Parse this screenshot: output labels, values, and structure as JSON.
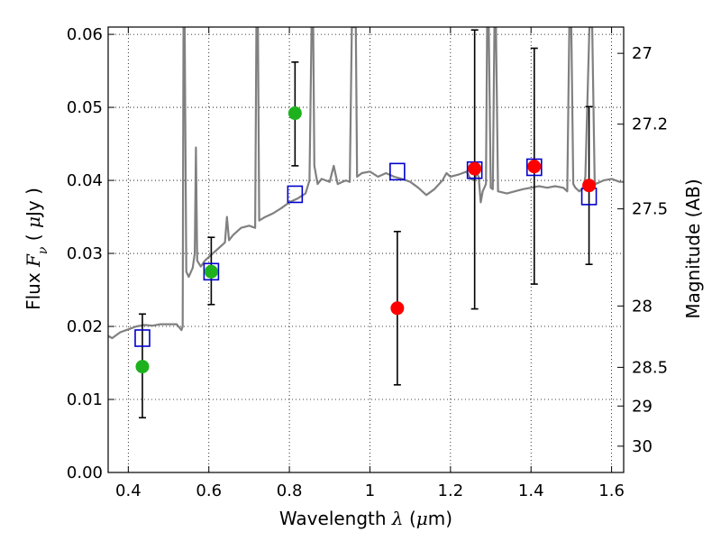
{
  "chart_data": {
    "type": "scatter",
    "xlabel": "Wavelength  λ (μm)",
    "ylabel": "Flux  F_ν  ( μJy )",
    "y2label": "Magnitude (AB)",
    "xlim": [
      0.35,
      1.63
    ],
    "ylim": [
      0.0,
      0.061
    ],
    "grid": true,
    "x_ticks": [
      0.4,
      0.6,
      0.8,
      1.0,
      1.2,
      1.4,
      1.6
    ],
    "x_tick_labels": [
      "0.4",
      "0.6",
      "0.8",
      "1",
      "1.2",
      "1.4",
      "1.6"
    ],
    "y_ticks": [
      0.0,
      0.01,
      0.02,
      0.03,
      0.04,
      0.05,
      0.06
    ],
    "y_tick_labels": [
      "0.00",
      "0.01",
      "0.02",
      "0.03",
      "0.04",
      "0.05",
      "0.06"
    ],
    "y2_ticks": [
      {
        "label": "27",
        "flux": 0.0574
      },
      {
        "label": "27.2",
        "flux": 0.0477
      },
      {
        "label": "27.5",
        "flux": 0.0361
      },
      {
        "label": "28",
        "flux": 0.0228
      },
      {
        "label": "28.5",
        "flux": 0.0144
      },
      {
        "label": "29",
        "flux": 0.0091
      },
      {
        "label": "30",
        "flux": 0.0036
      }
    ],
    "colors": {
      "model": "#808080",
      "green": "#1db21d",
      "red": "#ff0000",
      "blue": "#0000cc",
      "errorbar": "#000000",
      "grid": "#000000"
    },
    "series": [
      {
        "marker": "circle",
        "color": "green",
        "points": [
          {
            "x": 0.435,
            "y": 0.0145,
            "ylo": 0.0075,
            "yhi": 0.0217
          },
          {
            "x": 0.606,
            "y": 0.0275,
            "ylo": 0.023,
            "yhi": 0.0322
          },
          {
            "x": 0.814,
            "y": 0.0492,
            "ylo": 0.042,
            "yhi": 0.0562
          }
        ]
      },
      {
        "marker": "circle",
        "color": "red",
        "points": [
          {
            "x": 1.068,
            "y": 0.0225,
            "ylo": 0.012,
            "yhi": 0.033
          },
          {
            "x": 1.26,
            "y": 0.0416,
            "ylo": 0.0224,
            "yhi": 0.0606
          },
          {
            "x": 1.408,
            "y": 0.0419,
            "ylo": 0.0258,
            "yhi": 0.0581
          },
          {
            "x": 1.544,
            "y": 0.0393,
            "ylo": 0.0285,
            "yhi": 0.0501
          }
        ]
      },
      {
        "marker": "open-square",
        "color": "blue",
        "points": [
          {
            "x": 0.435,
            "y": 0.0184
          },
          {
            "x": 0.606,
            "y": 0.0275
          },
          {
            "x": 0.814,
            "y": 0.0381
          },
          {
            "x": 1.068,
            "y": 0.0412
          },
          {
            "x": 1.26,
            "y": 0.0414
          },
          {
            "x": 1.408,
            "y": 0.0418
          },
          {
            "x": 1.544,
            "y": 0.0378
          }
        ]
      },
      {
        "marker": "line",
        "color": "model",
        "points": [
          [
            0.35,
            0.0187
          ],
          [
            0.36,
            0.0184
          ],
          [
            0.38,
            0.0192
          ],
          [
            0.4,
            0.0196
          ],
          [
            0.42,
            0.02
          ],
          [
            0.44,
            0.0202
          ],
          [
            0.46,
            0.0201
          ],
          [
            0.48,
            0.0203
          ],
          [
            0.5,
            0.0203
          ],
          [
            0.52,
            0.0203
          ],
          [
            0.532,
            0.0195
          ],
          [
            0.535,
            0.02
          ],
          [
            0.537,
            0.061
          ],
          [
            0.54,
            0.061
          ],
          [
            0.544,
            0.0275
          ],
          [
            0.55,
            0.0268
          ],
          [
            0.56,
            0.028
          ],
          [
            0.565,
            0.03
          ],
          [
            0.568,
            0.0445
          ],
          [
            0.571,
            0.029
          ],
          [
            0.58,
            0.0282
          ],
          [
            0.59,
            0.029
          ],
          [
            0.6,
            0.0295
          ],
          [
            0.62,
            0.0305
          ],
          [
            0.64,
            0.0315
          ],
          [
            0.645,
            0.035
          ],
          [
            0.65,
            0.0318
          ],
          [
            0.66,
            0.0325
          ],
          [
            0.68,
            0.0335
          ],
          [
            0.7,
            0.0338
          ],
          [
            0.715,
            0.0335
          ],
          [
            0.718,
            0.061
          ],
          [
            0.722,
            0.061
          ],
          [
            0.725,
            0.0345
          ],
          [
            0.74,
            0.035
          ],
          [
            0.76,
            0.0355
          ],
          [
            0.78,
            0.0362
          ],
          [
            0.8,
            0.037
          ],
          [
            0.82,
            0.0375
          ],
          [
            0.84,
            0.0382
          ],
          [
            0.85,
            0.04
          ],
          [
            0.855,
            0.061
          ],
          [
            0.859,
            0.061
          ],
          [
            0.862,
            0.042
          ],
          [
            0.87,
            0.0395
          ],
          [
            0.88,
            0.0402
          ],
          [
            0.9,
            0.0398
          ],
          [
            0.91,
            0.042
          ],
          [
            0.92,
            0.0395
          ],
          [
            0.94,
            0.04
          ],
          [
            0.95,
            0.0398
          ],
          [
            0.955,
            0.061
          ],
          [
            0.965,
            0.061
          ],
          [
            0.968,
            0.0405
          ],
          [
            0.98,
            0.041
          ],
          [
            1.0,
            0.0412
          ],
          [
            1.02,
            0.0405
          ],
          [
            1.04,
            0.041
          ],
          [
            1.06,
            0.0405
          ],
          [
            1.08,
            0.0402
          ],
          [
            1.1,
            0.0398
          ],
          [
            1.12,
            0.039
          ],
          [
            1.14,
            0.038
          ],
          [
            1.16,
            0.0388
          ],
          [
            1.18,
            0.04
          ],
          [
            1.19,
            0.041
          ],
          [
            1.2,
            0.0405
          ],
          [
            1.22,
            0.0408
          ],
          [
            1.24,
            0.0412
          ],
          [
            1.25,
            0.0402
          ],
          [
            1.26,
            0.04
          ],
          [
            1.265,
            0.041
          ],
          [
            1.27,
            0.0405
          ],
          [
            1.275,
            0.037
          ],
          [
            1.28,
            0.0385
          ],
          [
            1.288,
            0.0395
          ],
          [
            1.291,
            0.061
          ],
          [
            1.295,
            0.061
          ],
          [
            1.3,
            0.039
          ],
          [
            1.305,
            0.0388
          ],
          [
            1.309,
            0.061
          ],
          [
            1.313,
            0.061
          ],
          [
            1.318,
            0.0385
          ],
          [
            1.34,
            0.0382
          ],
          [
            1.36,
            0.0385
          ],
          [
            1.38,
            0.0388
          ],
          [
            1.4,
            0.039
          ],
          [
            1.42,
            0.0392
          ],
          [
            1.44,
            0.039
          ],
          [
            1.46,
            0.0392
          ],
          [
            1.48,
            0.039
          ],
          [
            1.49,
            0.0385
          ],
          [
            1.495,
            0.061
          ],
          [
            1.5,
            0.061
          ],
          [
            1.505,
            0.0395
          ],
          [
            1.51,
            0.039
          ],
          [
            1.52,
            0.0385
          ],
          [
            1.53,
            0.039
          ],
          [
            1.535,
            0.0405
          ],
          [
            1.545,
            0.061
          ],
          [
            1.552,
            0.061
          ],
          [
            1.558,
            0.04
          ],
          [
            1.56,
            0.0395
          ],
          [
            1.58,
            0.04
          ],
          [
            1.6,
            0.0402
          ],
          [
            1.62,
            0.0398
          ],
          [
            1.63,
            0.0398
          ]
        ]
      }
    ]
  }
}
